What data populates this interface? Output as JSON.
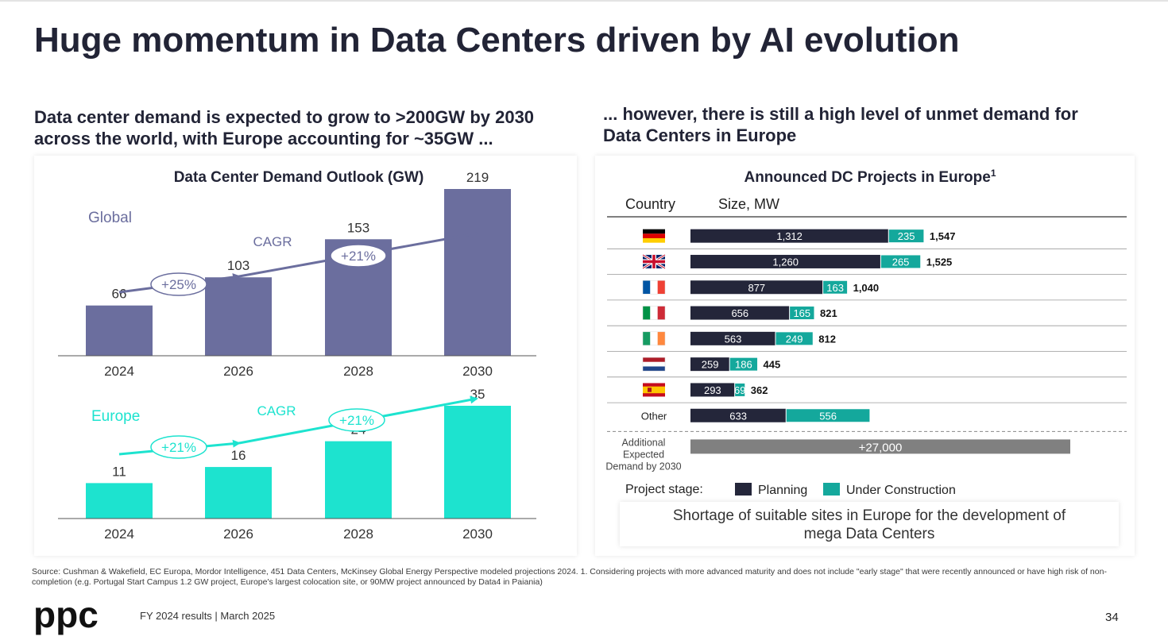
{
  "slide": {
    "title": "Huge momentum in Data Centers driven by AI evolution",
    "left_subtitle": [
      "Data center demand is expected to grow to >200GW by 2030",
      "across the world, with Europe accounting for ~35GW ..."
    ],
    "right_subtitle": [
      "... however, there is still a high level of unmet demand for",
      "Data Centers in Europe"
    ],
    "callout": [
      "Shortage of suitable sites in Europe for the development of",
      "mega Data Centers"
    ],
    "source": "Source: Cushman & Wakefield, EC Europa, Mordor Intelligence, 451 Data Centers, McKinsey Global Energy Perspective modeled projections 2024.  1.  Considering projects with more advanced maturity and does not include \"early stage\" that were recently announced or have high risk of non-completion (e.g. Portugal Start Campus 1.2 GW project, Europe's largest colocation site, or 90MW project announced by Data4 in Paiania)",
    "footer": "FY 2024 results | March 2025",
    "page_number": "34",
    "logo_text": "ppc"
  },
  "chart_data": [
    {
      "type": "bar",
      "title": "Data Center Demand Outlook (GW)",
      "categories": [
        "2024",
        "2026",
        "2028",
        "2030"
      ],
      "series": [
        {
          "name": "Global",
          "values": [
            66,
            103,
            153,
            219
          ],
          "color": "#6b6e9e"
        },
        {
          "name": "Europe",
          "values": [
            11,
            16,
            24,
            35
          ],
          "color": "#1de3cf"
        }
      ],
      "annotations": [
        {
          "series": "Global",
          "label": "CAGR",
          "rates": [
            "+25%",
            "+21%"
          ]
        },
        {
          "series": "Europe",
          "label": "CAGR",
          "rates": [
            "+21%",
            "+21%"
          ]
        }
      ]
    },
    {
      "type": "bar",
      "orientation": "horizontal",
      "stacked": true,
      "title": "Announced DC Projects in Europe",
      "title_superscript": "1",
      "col_headers": [
        "Country",
        "Size, MW"
      ],
      "categories": [
        "germany-flag",
        "uk-flag",
        "france-flag",
        "italy-flag",
        "ireland-flag",
        "netherlands-flag",
        "spain-flag",
        "Other"
      ],
      "series": [
        {
          "name": "Planning",
          "values": [
            1312,
            1260,
            877,
            656,
            563,
            259,
            293,
            633
          ],
          "color": "#24263a"
        },
        {
          "name": "Under Construction",
          "values": [
            235,
            265,
            163,
            165,
            249,
            186,
            69,
            556
          ],
          "color": "#14a89c"
        }
      ],
      "totals": [
        "1,547",
        "1,525",
        "1,040",
        "821",
        "812",
        "445",
        "362",
        ""
      ],
      "planning_labels": [
        "1,312",
        "1,260",
        "877",
        "656",
        "563",
        "259",
        "293",
        "633"
      ],
      "construction_labels": [
        "235",
        "265",
        "163",
        "165",
        "249",
        "186",
        "69",
        "556"
      ],
      "additional": {
        "label": [
          "Additional",
          "Expected",
          "Demand by 2030"
        ],
        "value": 27000,
        "display": "+27,000",
        "color": "#808080"
      },
      "legend_title": "Project stage:"
    }
  ]
}
